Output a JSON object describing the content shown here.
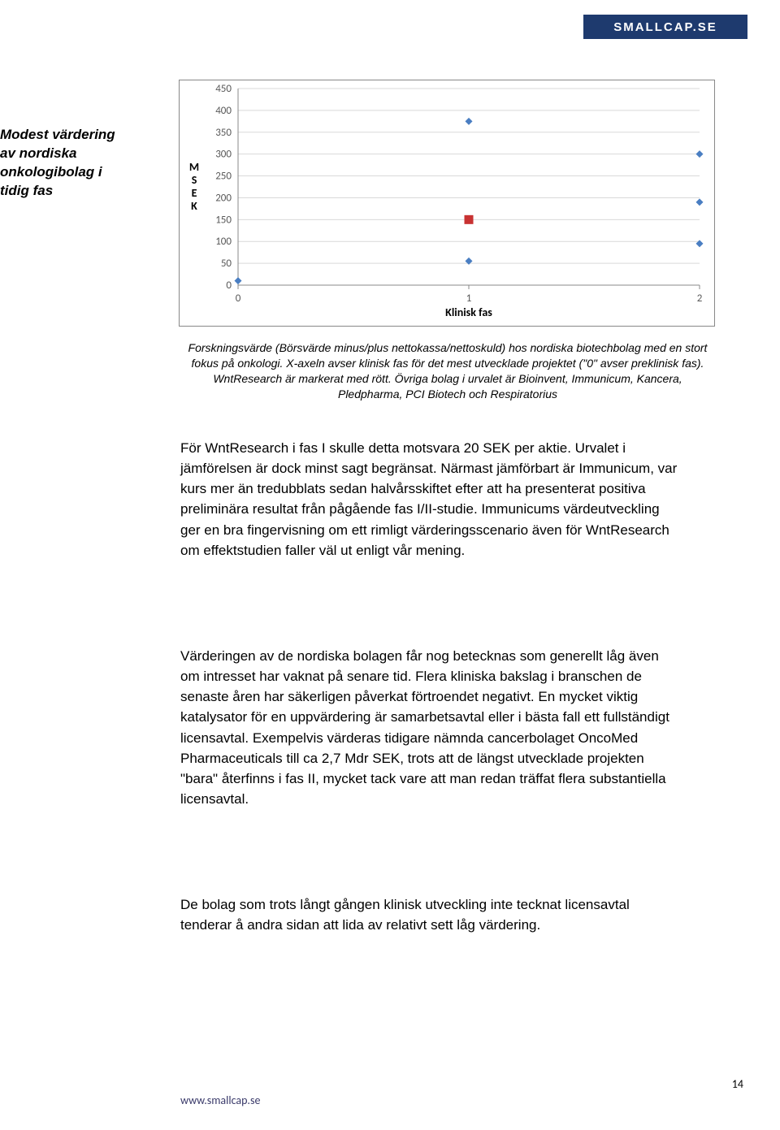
{
  "header": {
    "logo_text": "SMALLCAP.SE"
  },
  "sidebar": {
    "title": "Modest värdering av nordiska onkologibolag i tidig fas"
  },
  "chart": {
    "type": "scatter",
    "y_label": "M S E K",
    "y_label_fontsize": 14,
    "y_label_fontweight": "bold",
    "x_label": "Klinisk fas",
    "x_label_fontsize": 14,
    "x_label_fontweight": "bold",
    "ylim": [
      0,
      450
    ],
    "ytick_step": 50,
    "xlim": [
      0,
      2
    ],
    "xtick_step": 1,
    "background_color": "#ffffff",
    "grid_color": "#d9d9d9",
    "axis_color": "#888888",
    "tick_font_size": 13,
    "blue_points": {
      "color": "#4a7ec2",
      "marker": "diamond",
      "size": 9,
      "data": [
        {
          "x": 0,
          "y": 10
        },
        {
          "x": 1,
          "y": 55
        },
        {
          "x": 1,
          "y": 375
        },
        {
          "x": 2,
          "y": 95
        },
        {
          "x": 2,
          "y": 190
        },
        {
          "x": 2,
          "y": 300
        }
      ]
    },
    "red_points": {
      "color": "#c83232",
      "marker": "square",
      "size": 11,
      "data": [
        {
          "x": 1,
          "y": 150
        }
      ]
    }
  },
  "caption": "Forskningsvärde (Börsvärde minus/plus nettokassa/nettoskuld) hos nordiska biotechbolag med en stort fokus på onkologi. X-axeln avser klinisk fas för det mest utvecklade projektet (\"0\" avser preklinisk fas). WntResearch är markerat med rött. Övriga bolag i urvalet är Bioinvent, Immunicum, Kancera, Pledpharma, PCI Biotech och Respiratorius",
  "paragraphs": {
    "p1": "För WntResearch i fas I skulle detta motsvara 20 SEK per aktie. Urvalet i jämförelsen är dock minst sagt begränsat. Närmast jämförbart är Immunicum, var kurs mer än tredubblats sedan halvårsskiftet efter att ha presenterat positiva preliminära resultat från pågående fas I/II-studie. Immunicums värdeutveckling ger en bra fingervisning om ett rimligt värderingsscenario även för WntResearch om effektstudien faller väl ut enligt vår mening.",
    "p2": "Värderingen av de nordiska bolagen får nog betecknas som generellt låg även om intresset har vaknat på senare tid. Flera kliniska bakslag i branschen de senaste åren har säkerligen påverkat förtroendet negativt. En mycket viktig katalysator för en uppvärdering är samarbetsavtal eller i bästa fall ett fullständigt licensavtal. Exempelvis värderas tidigare nämnda cancerbolaget OncoMed Pharmaceuticals till ca 2,7 Mdr SEK, trots att de längst utvecklade projekten \"bara\" återfinns i fas II, mycket tack vare att man redan träffat flera substantiella licensavtal.",
    "p3": "De bolag som trots långt gången klinisk utveckling inte tecknat licensavtal tenderar å andra sidan att lida av relativt sett låg värdering."
  },
  "footer": {
    "url": "www.smallcap.se",
    "page_number": "14"
  }
}
